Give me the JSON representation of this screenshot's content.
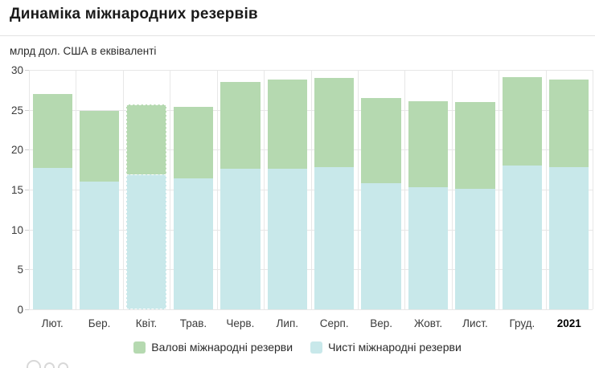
{
  "chart_data": {
    "type": "bar",
    "title": "Динаміка міжнародних резервів",
    "subtitle": "млрд дол. США в еквіваленті",
    "ylabel": "млрд дол. США в еквіваленті",
    "xlabel": "",
    "categories": [
      "Лют.",
      "Бер.",
      "Квіт.",
      "Трав.",
      "Черв.",
      "Лип.",
      "Серп.",
      "Вер.",
      "Жовт.",
      "Лист.",
      "Груд.",
      "2021"
    ],
    "series": [
      {
        "name": "Валові міжнародні резерви",
        "color": "#b5d9b0",
        "values": [
          27.0,
          24.9,
          25.7,
          25.4,
          28.5,
          28.8,
          29.0,
          26.5,
          26.1,
          26.0,
          29.1,
          28.8
        ]
      },
      {
        "name": "Чисті міжнародні резерви",
        "color": "#c8e8ea",
        "values": [
          17.7,
          16.0,
          16.9,
          16.4,
          17.6,
          17.6,
          17.8,
          15.8,
          15.3,
          15.1,
          18.0,
          17.8
        ]
      }
    ],
    "overlay": true,
    "ylim": [
      0,
      30
    ],
    "yticks": [
      0,
      5,
      10,
      15,
      20,
      25,
      30
    ],
    "grid": true,
    "legend_position": "bottom",
    "bold_last_category": true,
    "highlighted_category": "Квіт."
  },
  "colors": {
    "grid": "#e7e7e7",
    "divider": "#e2e2e2",
    "axis_text": "#3b3b3b",
    "title_text": "#1a1a1a"
  },
  "icons": {
    "footer_glyphs": "clipped-arc-glyphs"
  }
}
